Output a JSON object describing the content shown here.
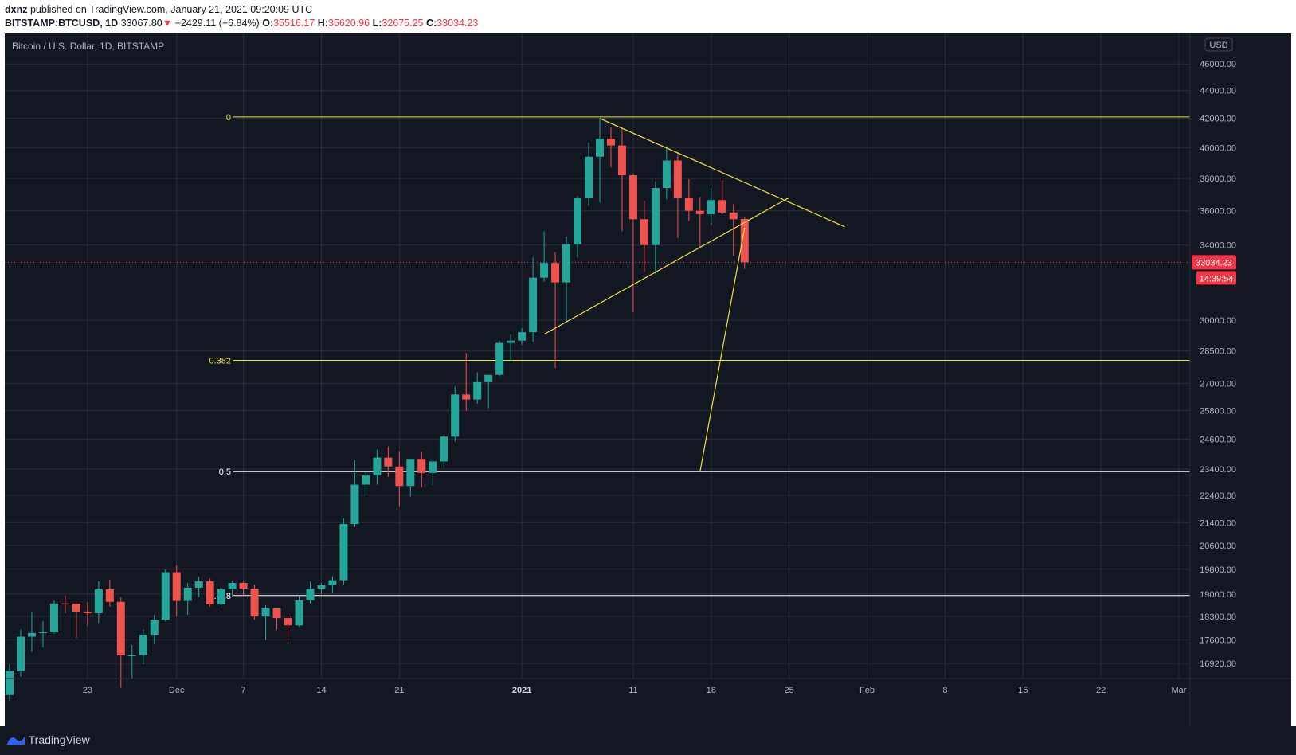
{
  "header": {
    "publisher": "dxnz",
    "published_text": "published on TradingView.com, January 21, 2021 09:20:09 UTC",
    "symbol": "BITSTAMP:BTCUSD, 1D",
    "last": "33067.80",
    "change_arrow": "▼",
    "change": "−2429.11 (−6.84%)",
    "o_label": "O:",
    "o_value": "35516.17",
    "h_label": "H:",
    "h_value": "35620.96",
    "l_label": "L:",
    "l_value": "32675.25",
    "c_label": "C:",
    "c_value": "33034.23"
  },
  "footer": {
    "brand": "TradingView",
    "brand_icon": "tradingview-logo-icon"
  },
  "colors": {
    "background": "#131722",
    "up": "#26a69a",
    "down": "#ef5350",
    "grid": "#2a2e39",
    "fib_yellow": "#f0e040",
    "fib_white": "#ffffff",
    "price_label_bg": "#f23645"
  },
  "chart_data": {
    "type": "candlestick",
    "title": "Bitcoin / U.S. Dollar, 1D, BITSTAMP",
    "currency": "USD",
    "scale": "log",
    "ylim": [
      16500,
      47000
    ],
    "grid": true,
    "y_ticks": [
      46000,
      44000,
      42000,
      40000,
      38000,
      36000,
      34000,
      30000,
      28500,
      27000,
      25800,
      24600,
      23400,
      22400,
      21400,
      20600,
      19800,
      19000,
      18300,
      17600,
      16920
    ],
    "y_tick_labels": [
      "46000.00",
      "44000.00",
      "42000.00",
      "40000.00",
      "38000.00",
      "36000.00",
      "34000.00",
      "30000.00",
      "28500.00",
      "27000.00",
      "25800.00",
      "24600.00",
      "23400.00",
      "22400.00",
      "21400.00",
      "20600.00",
      "19800.00",
      "19000.00",
      "18300.00",
      "17600.00",
      "16920.00"
    ],
    "x_start": "2020-11-16",
    "x_end": "2021-03-01",
    "x_ticks": [
      {
        "date": "2020-11-23",
        "label": "23",
        "bold": false
      },
      {
        "date": "2020-12-01",
        "label": "Dec",
        "bold": false
      },
      {
        "date": "2020-12-07",
        "label": "7",
        "bold": false
      },
      {
        "date": "2020-12-14",
        "label": "14",
        "bold": false
      },
      {
        "date": "2020-12-21",
        "label": "21",
        "bold": false
      },
      {
        "date": "2021-01-01",
        "label": "2021",
        "bold": true
      },
      {
        "date": "2021-01-11",
        "label": "11",
        "bold": false
      },
      {
        "date": "2021-01-18",
        "label": "18",
        "bold": false
      },
      {
        "date": "2021-01-25",
        "label": "25",
        "bold": false
      },
      {
        "date": "2021-02-01",
        "label": "Feb",
        "bold": false
      },
      {
        "date": "2021-02-08",
        "label": "8",
        "bold": false
      },
      {
        "date": "2021-02-15",
        "label": "15",
        "bold": false
      },
      {
        "date": "2021-02-22",
        "label": "22",
        "bold": false
      },
      {
        "date": "2021-03-01",
        "label": "Mar",
        "bold": false
      }
    ],
    "last_price": 33034.23,
    "last_price_label": "33034.23",
    "countdown_label": "14:39:54",
    "candles": [
      {
        "date": "2020-11-16",
        "o": 16050,
        "h": 16900,
        "l": 15900,
        "c": 16720
      },
      {
        "date": "2020-11-17",
        "o": 16700,
        "h": 17900,
        "l": 16550,
        "c": 17690
      },
      {
        "date": "2020-11-18",
        "o": 17690,
        "h": 18450,
        "l": 17250,
        "c": 17800
      },
      {
        "date": "2020-11-19",
        "o": 17800,
        "h": 18150,
        "l": 17380,
        "c": 17820
      },
      {
        "date": "2020-11-20",
        "o": 17820,
        "h": 18800,
        "l": 17780,
        "c": 18700
      },
      {
        "date": "2020-11-21",
        "o": 18700,
        "h": 18960,
        "l": 18400,
        "c": 18690
      },
      {
        "date": "2020-11-22",
        "o": 18690,
        "h": 18700,
        "l": 17650,
        "c": 18450
      },
      {
        "date": "2020-11-23",
        "o": 18450,
        "h": 18750,
        "l": 18000,
        "c": 18400
      },
      {
        "date": "2020-11-24",
        "o": 18400,
        "h": 19400,
        "l": 18100,
        "c": 19150
      },
      {
        "date": "2020-11-25",
        "o": 19150,
        "h": 19460,
        "l": 18600,
        "c": 18750
      },
      {
        "date": "2020-11-26",
        "o": 18750,
        "h": 18900,
        "l": 16250,
        "c": 17150
      },
      {
        "date": "2020-11-27",
        "o": 17150,
        "h": 17450,
        "l": 16500,
        "c": 17150
      },
      {
        "date": "2020-11-28",
        "o": 17150,
        "h": 17900,
        "l": 16900,
        "c": 17750
      },
      {
        "date": "2020-11-29",
        "o": 17750,
        "h": 18350,
        "l": 17500,
        "c": 18200
      },
      {
        "date": "2020-11-30",
        "o": 18200,
        "h": 19800,
        "l": 18150,
        "c": 19700
      },
      {
        "date": "2020-12-01",
        "o": 19700,
        "h": 19920,
        "l": 18300,
        "c": 18780
      },
      {
        "date": "2020-12-02",
        "o": 18780,
        "h": 19350,
        "l": 18350,
        "c": 19200
      },
      {
        "date": "2020-12-03",
        "o": 19200,
        "h": 19550,
        "l": 18900,
        "c": 19400
      },
      {
        "date": "2020-12-04",
        "o": 19400,
        "h": 19500,
        "l": 18600,
        "c": 18670
      },
      {
        "date": "2020-12-05",
        "o": 18670,
        "h": 19200,
        "l": 18550,
        "c": 19150
      },
      {
        "date": "2020-12-06",
        "o": 19150,
        "h": 19420,
        "l": 18900,
        "c": 19350
      },
      {
        "date": "2020-12-07",
        "o": 19350,
        "h": 19400,
        "l": 18920,
        "c": 19170
      },
      {
        "date": "2020-12-08",
        "o": 19170,
        "h": 19300,
        "l": 18200,
        "c": 18300
      },
      {
        "date": "2020-12-09",
        "o": 18300,
        "h": 18650,
        "l": 17600,
        "c": 18550
      },
      {
        "date": "2020-12-10",
        "o": 18550,
        "h": 18550,
        "l": 17900,
        "c": 18250
      },
      {
        "date": "2020-12-11",
        "o": 18250,
        "h": 18300,
        "l": 17600,
        "c": 18030
      },
      {
        "date": "2020-12-12",
        "o": 18030,
        "h": 18950,
        "l": 18000,
        "c": 18800
      },
      {
        "date": "2020-12-13",
        "o": 18800,
        "h": 19400,
        "l": 18700,
        "c": 19170
      },
      {
        "date": "2020-12-14",
        "o": 19170,
        "h": 19350,
        "l": 19000,
        "c": 19280
      },
      {
        "date": "2020-12-15",
        "o": 19280,
        "h": 19570,
        "l": 19050,
        "c": 19440
      },
      {
        "date": "2020-12-16",
        "o": 19440,
        "h": 21550,
        "l": 19300,
        "c": 21350
      },
      {
        "date": "2020-12-17",
        "o": 21350,
        "h": 23750,
        "l": 21250,
        "c": 22800
      },
      {
        "date": "2020-12-18",
        "o": 22800,
        "h": 23300,
        "l": 22350,
        "c": 23150
      },
      {
        "date": "2020-12-19",
        "o": 23150,
        "h": 24170,
        "l": 22800,
        "c": 23850
      },
      {
        "date": "2020-12-20",
        "o": 23850,
        "h": 24300,
        "l": 23100,
        "c": 23500
      },
      {
        "date": "2020-12-21",
        "o": 23500,
        "h": 24100,
        "l": 22000,
        "c": 22750
      },
      {
        "date": "2020-12-22",
        "o": 22750,
        "h": 23800,
        "l": 22350,
        "c": 23800
      },
      {
        "date": "2020-12-23",
        "o": 23800,
        "h": 24100,
        "l": 22700,
        "c": 23250
      },
      {
        "date": "2020-12-24",
        "o": 23250,
        "h": 23800,
        "l": 22800,
        "c": 23700
      },
      {
        "date": "2020-12-25",
        "o": 23700,
        "h": 24750,
        "l": 23450,
        "c": 24700
      },
      {
        "date": "2020-12-26",
        "o": 24700,
        "h": 26850,
        "l": 24500,
        "c": 26500
      },
      {
        "date": "2020-12-27",
        "o": 26500,
        "h": 28400,
        "l": 25800,
        "c": 26280
      },
      {
        "date": "2020-12-28",
        "o": 26280,
        "h": 27500,
        "l": 26100,
        "c": 27050
      },
      {
        "date": "2020-12-29",
        "o": 27050,
        "h": 27370,
        "l": 25900,
        "c": 27380
      },
      {
        "date": "2020-12-30",
        "o": 27380,
        "h": 28990,
        "l": 27320,
        "c": 28880
      },
      {
        "date": "2020-12-31",
        "o": 28880,
        "h": 29300,
        "l": 28000,
        "c": 28990
      },
      {
        "date": "2021-01-01",
        "o": 28990,
        "h": 29600,
        "l": 28800,
        "c": 29400
      },
      {
        "date": "2021-01-02",
        "o": 29400,
        "h": 33300,
        "l": 28950,
        "c": 32200
      },
      {
        "date": "2021-01-03",
        "o": 32200,
        "h": 34800,
        "l": 32000,
        "c": 33000
      },
      {
        "date": "2021-01-04",
        "o": 33000,
        "h": 33600,
        "l": 27700,
        "c": 31950
      },
      {
        "date": "2021-01-05",
        "o": 31950,
        "h": 34500,
        "l": 29900,
        "c": 34050
      },
      {
        "date": "2021-01-06",
        "o": 34050,
        "h": 36900,
        "l": 33300,
        "c": 36800
      },
      {
        "date": "2021-01-07",
        "o": 36800,
        "h": 40350,
        "l": 36300,
        "c": 39400
      },
      {
        "date": "2021-01-08",
        "o": 39400,
        "h": 41950,
        "l": 36500,
        "c": 40600
      },
      {
        "date": "2021-01-09",
        "o": 40600,
        "h": 41400,
        "l": 38700,
        "c": 40150
      },
      {
        "date": "2021-01-10",
        "o": 40150,
        "h": 41350,
        "l": 34800,
        "c": 38200
      },
      {
        "date": "2021-01-11",
        "o": 38200,
        "h": 38300,
        "l": 30400,
        "c": 35500
      },
      {
        "date": "2021-01-12",
        "o": 35500,
        "h": 36600,
        "l": 32500,
        "c": 34000
      },
      {
        "date": "2021-01-13",
        "o": 34000,
        "h": 37800,
        "l": 32400,
        "c": 37400
      },
      {
        "date": "2021-01-14",
        "o": 37400,
        "h": 40100,
        "l": 36700,
        "c": 39150
      },
      {
        "date": "2021-01-15",
        "o": 39150,
        "h": 39700,
        "l": 34400,
        "c": 36800
      },
      {
        "date": "2021-01-16",
        "o": 36800,
        "h": 37950,
        "l": 35400,
        "c": 36000
      },
      {
        "date": "2021-01-17",
        "o": 36000,
        "h": 36850,
        "l": 33900,
        "c": 35800
      },
      {
        "date": "2021-01-18",
        "o": 35800,
        "h": 37400,
        "l": 35150,
        "c": 36650
      },
      {
        "date": "2021-01-19",
        "o": 36650,
        "h": 37900,
        "l": 35800,
        "c": 35900
      },
      {
        "date": "2021-01-20",
        "o": 35900,
        "h": 36400,
        "l": 33400,
        "c": 35497
      },
      {
        "date": "2021-01-21",
        "o": 35516.17,
        "h": 35620.96,
        "l": 32675.25,
        "c": 33034.23
      }
    ],
    "fib_levels": [
      {
        "label": "0",
        "price": 42100,
        "color": "#f0e040"
      },
      {
        "label": "0.382",
        "price": 28050,
        "color": "#f0e040"
      },
      {
        "label": "0.5",
        "price": 23300,
        "color": "#ffffff"
      },
      {
        "label": "0.618",
        "price": 18950,
        "color": "#ffffff"
      }
    ],
    "trend_lines": [
      {
        "name": "upper-triangle-line",
        "from": {
          "date": "2021-01-08",
          "price": 42000
        },
        "to": {
          "date": "2021-01-30",
          "price": 35050
        }
      },
      {
        "name": "lower-triangle-line",
        "from": {
          "date": "2021-01-03",
          "price": 29300
        },
        "to": {
          "date": "2021-01-25",
          "price": 36800
        }
      },
      {
        "name": "projection-line",
        "from": {
          "date": "2021-01-21",
          "price": 35000
        },
        "to": {
          "date": "2021-01-17",
          "price": 23300
        }
      }
    ]
  }
}
